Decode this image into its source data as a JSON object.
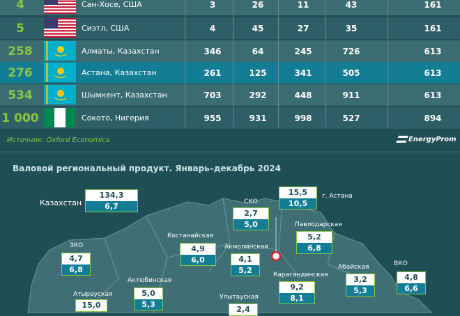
{
  "table": {
    "rows": [
      {
        "rank": "4",
        "flag": "usa",
        "city": "Сан-Хосе, США",
        "values": [
          "3",
          "26",
          "11",
          "43",
          "161"
        ],
        "style": "even"
      },
      {
        "rank": "5",
        "flag": "usa",
        "city": "Сиэтл, США",
        "values": [
          "4",
          "45",
          "27",
          "35",
          "161"
        ],
        "style": "odd"
      },
      {
        "rank": "258",
        "flag": "kazakhstan",
        "city": "Алматы, Казахстан",
        "values": [
          "346",
          "64",
          "245",
          "726",
          "613"
        ],
        "style": "even"
      },
      {
        "rank": "276",
        "flag": "kazakhstan",
        "city": "Астана, Казахстан",
        "values": [
          "261",
          "125",
          "341",
          "505",
          "613"
        ],
        "style": "hl"
      },
      {
        "rank": "534",
        "flag": "kazakhstan",
        "city": "Шымкент, Казахстан",
        "values": [
          "703",
          "292",
          "448",
          "911",
          "613"
        ],
        "style": "even"
      },
      {
        "rank": "1 000",
        "flag": "nigeria",
        "city": "Сокото, Нигерия",
        "values": [
          "955",
          "931",
          "998",
          "527",
          "894"
        ],
        "style": "odd"
      }
    ]
  },
  "source": "Источник: Oxford Economics",
  "logo": "EnergyProm",
  "colors": {
    "accent": "#8ac640",
    "highlight": "#137d96",
    "background": "#1f4e55"
  },
  "map": {
    "title": "Валовой региональный продукт. Январь–декабрь 2024",
    "country": {
      "label": "Казахстан",
      "v1": "134,3",
      "v2": "6,7"
    },
    "regions": [
      {
        "label": "г. Астана",
        "v1": "15,5",
        "v2": "10,5"
      },
      {
        "label": "СКО",
        "v1": "2,7",
        "v2": "5,0"
      },
      {
        "label": "Павлодарская",
        "v1": "5,2",
        "v2": "6,8"
      },
      {
        "label": "Костанайская",
        "v1": "4,9",
        "v2": "6,0"
      },
      {
        "label": "Акмолинская",
        "v1": "4,1",
        "v2": "5,2"
      },
      {
        "label": "ЗКО",
        "v1": "4,7",
        "v2": "6,8"
      },
      {
        "label": "Абайская",
        "v1": "3,2",
        "v2": "5,3"
      },
      {
        "label": "ВКО",
        "v1": "4,8",
        "v2": "6,6"
      },
      {
        "label": "Актюбинская",
        "v1": "5,0",
        "v2": "5,3"
      },
      {
        "label": "Карагандинская",
        "v1": "9,2",
        "v2": "8,1"
      },
      {
        "label": "Атырауская",
        "v1": "15,0",
        "v2": ""
      },
      {
        "label": "Улытауская",
        "v1": "2,4",
        "v2": ""
      }
    ]
  }
}
